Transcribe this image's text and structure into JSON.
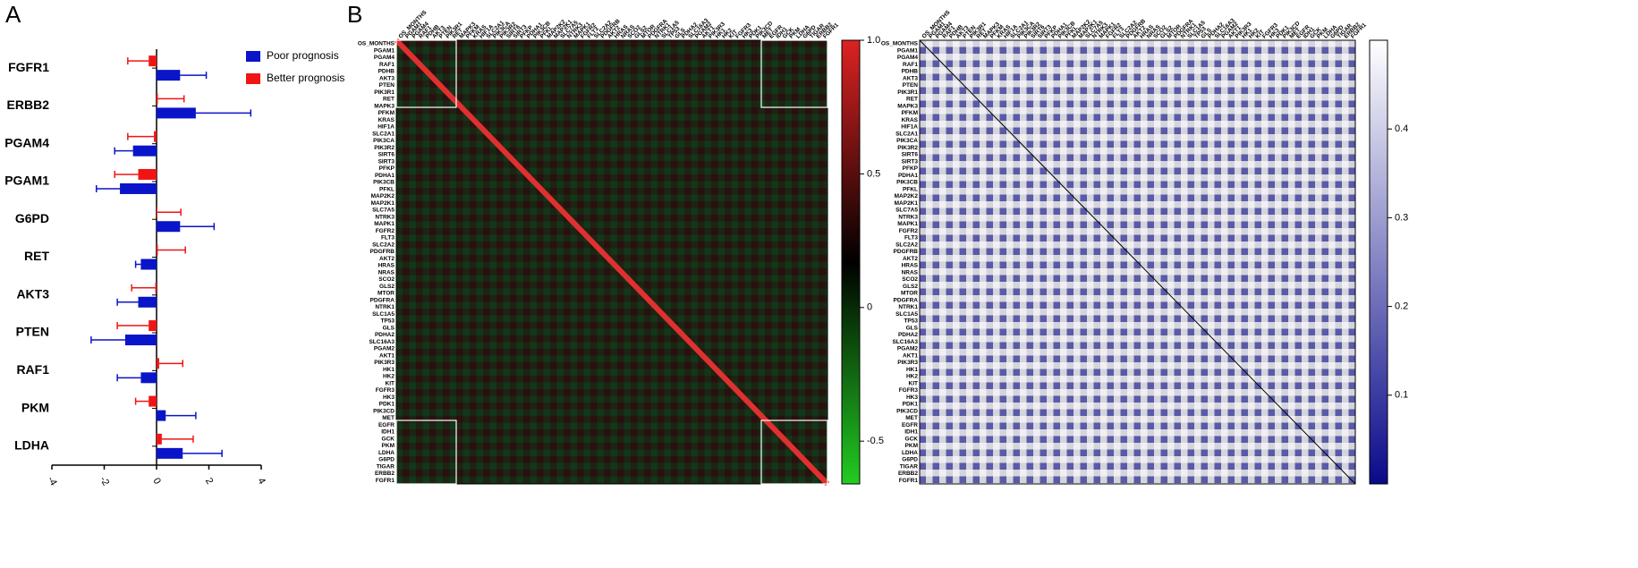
{
  "chart_data": [
    {
      "type": "hbar",
      "panel_label": "A",
      "categories": [
        "FGFR1",
        "ERBB2",
        "PGAM4",
        "PGAM1",
        "G6PD",
        "RET",
        "AKT3",
        "PTEN",
        "RAF1",
        "PKM",
        "LDHA"
      ],
      "series": [
        {
          "name": "Poor prognosis",
          "color": "#0a14c8",
          "values": [
            0.9,
            1.5,
            -0.9,
            -1.4,
            0.9,
            -0.6,
            -0.7,
            -1.2,
            -0.6,
            0.35,
            1.0
          ],
          "errors": [
            1.0,
            2.1,
            0.7,
            0.9,
            1.3,
            0.2,
            0.8,
            1.3,
            0.9,
            1.15,
            1.5
          ]
        },
        {
          "name": "Better prognosis",
          "color": "#f01414",
          "values": [
            -0.3,
            0.05,
            -0.1,
            -0.7,
            0.03,
            0.05,
            -0.05,
            -0.3,
            0.1,
            -0.3,
            0.2
          ],
          "errors": [
            0.8,
            1.0,
            1.0,
            0.9,
            0.9,
            1.05,
            0.9,
            1.2,
            0.9,
            0.5,
            1.2
          ]
        }
      ],
      "xlim": [
        -4,
        4
      ],
      "xticks": [
        -4,
        -2,
        0,
        2,
        4
      ],
      "legend": "top-right"
    },
    {
      "type": "heatmap",
      "panel_label": "B",
      "labels": [
        "OS_MONTHS",
        "PGAM1",
        "PGAM4",
        "RAF1",
        "PDHB",
        "AKT3",
        "PTEN",
        "PIK3R1",
        "RET",
        "MAPK3",
        "PFKM",
        "KRAS",
        "HIF1A",
        "SLC2A1",
        "PIK3CA",
        "PIK3R2",
        "SIRT6",
        "SIRT3",
        "PFKP",
        "PDHA1",
        "PIK3CB",
        "PFKL",
        "MAP2K2",
        "MAP2K1",
        "SLC7A5",
        "NTRK3",
        "MAPK1",
        "FGFR2",
        "FLT3",
        "SLC2A2",
        "PDGFRB",
        "AKT2",
        "HRAS",
        "NRAS",
        "SCO2",
        "GLS2",
        "MTOR",
        "PDGFRA",
        "NTRK1",
        "SLC1A5",
        "TP53",
        "GLS",
        "PDHA2",
        "SLC16A3",
        "PGAM2",
        "AKT1",
        "PIK3R3",
        "HK1",
        "HK2",
        "KIT",
        "FGFR3",
        "HK3",
        "PDK1",
        "PIK3CD",
        "MET",
        "EGFR",
        "IDH1",
        "GCK",
        "PKM",
        "LDHA",
        "G6PD",
        "TIGAR",
        "ERBB2",
        "FGFR1"
      ],
      "colorbar": {
        "lim": [
          -0.66,
          1
        ],
        "ticks": [
          {
            "value": 1,
            "label": "1.0"
          },
          0.5,
          0,
          -0.5
        ],
        "colors": [
          "#22cc22",
          "#000000",
          "#dd2222"
        ]
      }
    },
    {
      "type": "heatmap",
      "labels": [
        "OS_MONTHS",
        "PGAM1",
        "PGAM4",
        "RAF1",
        "PDHB",
        "AKT3",
        "PTEN",
        "PIK3R1",
        "RET",
        "MAPK3",
        "PFKM",
        "KRAS",
        "HIF1A",
        "SLC2A1",
        "PIK3CA",
        "PIK3R2",
        "SIRT6",
        "SIRT3",
        "PFKP",
        "PDHA1",
        "PIK3CB",
        "PFKL",
        "MAP2K2",
        "MAP2K1",
        "SLC7A5",
        "NTRK3",
        "MAPK1",
        "FGFR2",
        "FLT3",
        "SLC2A2",
        "PDGFRB",
        "AKT2",
        "HRAS",
        "NRAS",
        "SCO2",
        "GLS2",
        "MTOR",
        "PDGFRA",
        "NTRK1",
        "SLC1A5",
        "TP53",
        "GLS",
        "PDHA2",
        "SLC16A3",
        "PGAM2",
        "AKT1",
        "PIK3R3",
        "HK1",
        "HK2",
        "KIT",
        "FGFR3",
        "HK3",
        "PDK1",
        "PIK3CD",
        "MET",
        "EGFR",
        "IDH1",
        "GCK",
        "PKM",
        "LDHA",
        "G6PD",
        "TIGAR",
        "ERBB2",
        "FGFR1"
      ],
      "colorbar": {
        "lim": [
          0,
          0.5
        ],
        "ticks": [
          0.4,
          0.3,
          0.2,
          0.1
        ],
        "colors": [
          "#0a0a8a",
          "#ffffff"
        ]
      }
    }
  ]
}
